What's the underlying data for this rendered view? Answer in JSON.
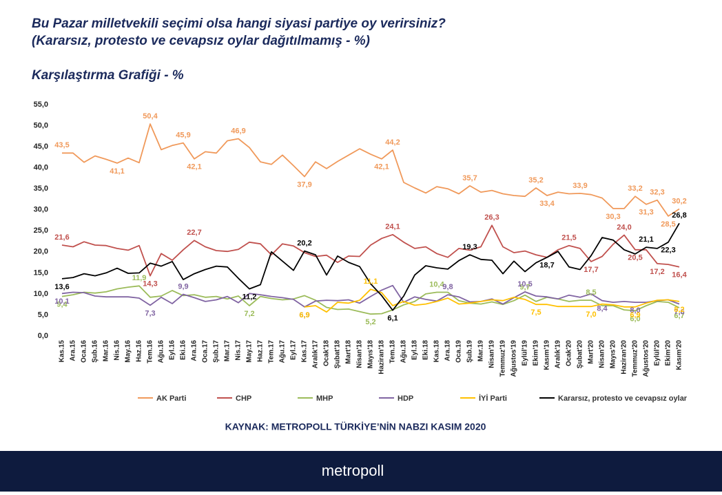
{
  "header": {
    "title": "Bu Pazar milletvekili seçimi olsa  hangi siyasi partiye oy verirsiniz?",
    "subtitle": "(Kararsız, protesto ve cevapsız oylar dağıtılmamış - %)",
    "section": "Karşılaştırma Grafiği - %"
  },
  "chart_data": {
    "type": "line",
    "categories": [
      "Kas.15",
      "Ara.15",
      "Oca.16",
      "Şub.16",
      "Mar.16",
      "Nis.16",
      "May.16",
      "Haz.16",
      "Tem.16",
      "Ağu.16",
      "Eyl.16",
      "Eki.16",
      "Ara.16",
      "Oca.17",
      "Şub.17",
      "Mar.17",
      "Nis.17",
      "May.17",
      "Haz.17",
      "Tem.17",
      "Ağu.17",
      "Eyl.17",
      "Kas.17",
      "Aralık'17",
      "Ocak'18",
      "Şubat'18",
      "Mart'18",
      "Nisan'18",
      "Mayıs'18",
      "Haziran'18",
      "Tem.18",
      "Ağu.18",
      "Eyl.18",
      "Eki.18",
      "Kas.18",
      "Ara.18",
      "Oca.19",
      "Şub.19",
      "Mar.19",
      "Nisan'19",
      "Temmuz'19",
      "Ağustos'19",
      "Eylül'19",
      "Ekim'19",
      "Kasım'19",
      "Aralık'19",
      "Ocak'20",
      "Şubat'20",
      "Mart'20",
      "Nisan'20",
      "Mayıs'20",
      "Haziran'20",
      "Temmuz'20",
      "Ağustos'20",
      "Eylül'20",
      "Ekim'20",
      "Kasım'20"
    ],
    "ylim": [
      0,
      55
    ],
    "yticks": [
      {
        "value": 0,
        "label": "0,0"
      },
      {
        "value": 5,
        "label": "5,0"
      },
      {
        "value": 10,
        "label": "10,0"
      },
      {
        "value": 15,
        "label": "15,0"
      },
      {
        "value": 20,
        "label": "20,0"
      },
      {
        "value": 25,
        "label": "25,0"
      },
      {
        "value": 30,
        "label": "30,0"
      },
      {
        "value": 35,
        "label": "35,0"
      },
      {
        "value": 40,
        "label": "40,0"
      },
      {
        "value": 45,
        "label": "45,0"
      },
      {
        "value": 50,
        "label": "50,0"
      },
      {
        "value": 55,
        "label": "55,0"
      }
    ],
    "series": [
      {
        "name": "AK Parti",
        "color": "#f0995a",
        "values": [
          43.5,
          43.5,
          41.3,
          42.8,
          42,
          41.1,
          42.3,
          41.2,
          50.4,
          44.3,
          45.3,
          45.9,
          42.1,
          43.8,
          43.5,
          46.4,
          46.9,
          44.8,
          41.4,
          40.8,
          43,
          40.5,
          37.9,
          41.4,
          39.8,
          41.5,
          43,
          44.5,
          43.2,
          42.1,
          44.2,
          36.5,
          35.2,
          34,
          35.5,
          35,
          33.8,
          35.7,
          34.2,
          34.6,
          33.8,
          33.4,
          33.2,
          35.2,
          33.4,
          34.2,
          33.8,
          33.9,
          33.6,
          32.8,
          30.3,
          30.3,
          33.2,
          31.3,
          32.3,
          28.5,
          30.2
        ],
        "value_labels": [
          "43,5",
          null,
          null,
          null,
          null,
          "41,1",
          null,
          null,
          "50,4",
          null,
          null,
          "45,9",
          "42,1",
          null,
          null,
          null,
          "46,9",
          null,
          null,
          null,
          null,
          null,
          "37,9",
          null,
          null,
          null,
          null,
          null,
          null,
          "42,1",
          "44,2",
          null,
          null,
          null,
          null,
          null,
          null,
          "35,7",
          null,
          null,
          null,
          null,
          null,
          "35,2",
          "33,4",
          null,
          null,
          "33,9",
          null,
          null,
          "30,3",
          null,
          "33,2",
          "31,3",
          "32,3",
          "28,5",
          "30,2"
        ]
      },
      {
        "name": "CHP",
        "color": "#c0504d",
        "values": [
          21.6,
          21.2,
          22.4,
          21.6,
          21.5,
          20.8,
          20.4,
          21.5,
          14.3,
          19.6,
          18,
          20.5,
          22.7,
          21.2,
          20.3,
          20.1,
          20.6,
          22.3,
          21.9,
          19.3,
          21.9,
          21.4,
          19.8,
          18.9,
          19.2,
          17.5,
          19,
          18.9,
          21.6,
          23.2,
          24.1,
          22.3,
          20.8,
          21.2,
          19.6,
          18.7,
          20.8,
          20.4,
          21.2,
          26.3,
          21.2,
          19.8,
          20.2,
          19.3,
          18.7,
          20.5,
          21.5,
          20.8,
          17.7,
          18.9,
          21.8,
          24.0,
          20.5,
          20.5,
          17.2,
          17.0,
          16.4
        ],
        "value_labels": [
          "21,6",
          null,
          null,
          null,
          null,
          null,
          null,
          null,
          "14,3",
          null,
          null,
          null,
          "22,7",
          null,
          null,
          null,
          null,
          null,
          null,
          null,
          null,
          null,
          null,
          null,
          null,
          null,
          null,
          null,
          null,
          null,
          "24,1",
          null,
          null,
          null,
          null,
          null,
          null,
          null,
          null,
          "26,3",
          null,
          null,
          null,
          null,
          null,
          null,
          "21,5",
          null,
          "17,7",
          null,
          null,
          "24,0",
          "20,5",
          null,
          "17,2",
          null,
          "16,4"
        ]
      },
      {
        "name": "MHP",
        "color": "#9bbb59",
        "values": [
          9.4,
          9.8,
          10.4,
          10.2,
          10.5,
          11.2,
          11.6,
          11.9,
          9.2,
          9.5,
          10.8,
          9.6,
          9.8,
          9.2,
          9.4,
          8.8,
          9.5,
          7.2,
          9.4,
          8.9,
          8.6,
          8.8,
          9.6,
          8.5,
          6.8,
          6.3,
          6.4,
          5.8,
          5.2,
          5.3,
          6.2,
          7.4,
          8.2,
          10,
          10.4,
          10.4,
          8.4,
          7.8,
          7.6,
          8.1,
          7.5,
          8.4,
          9.7,
          8.2,
          9.2,
          8.8,
          8.2,
          8.5,
          8.5,
          7.2,
          7.2,
          6.2,
          6.0,
          7.2,
          8.2,
          8.0,
          6.7
        ],
        "value_labels": [
          "9,4",
          null,
          null,
          null,
          null,
          null,
          null,
          "11,9",
          null,
          null,
          null,
          null,
          null,
          null,
          null,
          null,
          null,
          "7,2",
          null,
          null,
          null,
          null,
          null,
          null,
          null,
          null,
          null,
          null,
          "5,2",
          null,
          null,
          null,
          null,
          null,
          "10,4",
          null,
          null,
          null,
          null,
          null,
          null,
          null,
          "9,7",
          null,
          null,
          null,
          null,
          null,
          "8,5",
          null,
          null,
          null,
          "6,0",
          null,
          null,
          null,
          "6,7"
        ]
      },
      {
        "name": "HDP",
        "color": "#8064a2",
        "values": [
          10.1,
          10.4,
          10.3,
          9.5,
          9.3,
          9.3,
          9.3,
          9.0,
          7.3,
          9.2,
          7.7,
          9.9,
          9.1,
          8.2,
          8.6,
          9.4,
          7.9,
          10.1,
          9.8,
          9.4,
          9.1,
          8.7,
          6.9,
          8.3,
          8.5,
          8.4,
          8.6,
          7.8,
          9.4,
          10.9,
          12.0,
          8,
          9.3,
          8.7,
          8.3,
          9.8,
          9.3,
          8.1,
          8.2,
          8.8,
          7.6,
          9.1,
          10.5,
          9.5,
          9.3,
          8.8,
          9.7,
          9.2,
          10,
          8.4,
          8.0,
          8.2,
          8.0,
          8.0,
          8.4,
          8.6,
          7.6
        ],
        "value_labels": [
          "10,1",
          null,
          null,
          null,
          null,
          null,
          null,
          null,
          "7,3",
          null,
          null,
          "9,9",
          null,
          null,
          null,
          null,
          null,
          null,
          null,
          null,
          null,
          null,
          "6,9",
          null,
          null,
          null,
          null,
          null,
          null,
          null,
          null,
          null,
          null,
          null,
          null,
          "9,8",
          null,
          null,
          null,
          null,
          null,
          null,
          "10,5",
          null,
          null,
          null,
          null,
          null,
          null,
          "8,4",
          null,
          null,
          "8,0",
          null,
          null,
          null,
          "7,6"
        ]
      },
      {
        "name": "İYİ Parti",
        "color": "#ffc000",
        "values": [
          null,
          null,
          null,
          null,
          null,
          null,
          null,
          null,
          null,
          null,
          null,
          null,
          null,
          null,
          null,
          null,
          null,
          null,
          null,
          null,
          null,
          null,
          6.9,
          7.2,
          5.7,
          8.0,
          7.8,
          8.5,
          11.1,
          10.3,
          7.2,
          8.2,
          7.3,
          7.6,
          8.2,
          9.0,
          7.6,
          7.8,
          8.2,
          8.6,
          8.4,
          9.2,
          8.7,
          7.5,
          7.5,
          7.0,
          7.0,
          7.0,
          7.0,
          7.6,
          7.4,
          6.9,
          6.9,
          7.8,
          8.5,
          8.6,
          8.2
        ],
        "value_labels": [
          null,
          null,
          null,
          null,
          null,
          null,
          null,
          null,
          null,
          null,
          null,
          null,
          null,
          null,
          null,
          null,
          null,
          null,
          null,
          null,
          null,
          null,
          "6,9",
          null,
          null,
          null,
          null,
          null,
          "11,1",
          null,
          null,
          null,
          null,
          null,
          null,
          null,
          null,
          null,
          null,
          null,
          null,
          null,
          null,
          "7,5",
          null,
          null,
          null,
          null,
          "7,0",
          null,
          null,
          null,
          "6,9",
          null,
          null,
          null,
          "8,2"
        ]
      },
      {
        "name": "Kararsız, protesto ve cevapsız oylar",
        "color": "#000000",
        "values": [
          13.6,
          13.9,
          14.8,
          14.3,
          15,
          16.1,
          14.9,
          15,
          17.3,
          16.6,
          17.7,
          13.4,
          14.8,
          15.8,
          16.6,
          16.4,
          13.7,
          11.2,
          12.2,
          20,
          17.8,
          15.6,
          20.2,
          19.3,
          14.5,
          19,
          17.5,
          16.5,
          12.4,
          9.6,
          6.1,
          9.5,
          14.5,
          16.7,
          16.2,
          15.9,
          17.9,
          19.3,
          18.2,
          18,
          14.8,
          17.8,
          15.3,
          17.4,
          18.7,
          20.1,
          16.4,
          15.8,
          19.1,
          23.4,
          22.8,
          20.5,
          19.5,
          21.1,
          20.8,
          22.3,
          26.8
        ],
        "value_labels": [
          "13,6",
          null,
          null,
          null,
          null,
          null,
          null,
          null,
          null,
          null,
          null,
          null,
          null,
          null,
          null,
          null,
          null,
          "11,2",
          null,
          null,
          null,
          null,
          "20,2",
          null,
          null,
          null,
          null,
          null,
          null,
          null,
          "6,1",
          null,
          null,
          null,
          null,
          null,
          null,
          "19,3",
          null,
          null,
          null,
          null,
          null,
          null,
          "18,7",
          null,
          null,
          null,
          null,
          null,
          null,
          null,
          null,
          "21,1",
          null,
          "22,3",
          "26,8"
        ]
      }
    ],
    "source": "KAYNAK: METROPOLL TÜRKİYE’NİN NABZI KASIM 2020"
  },
  "footer": {
    "brand": "metropoll"
  }
}
